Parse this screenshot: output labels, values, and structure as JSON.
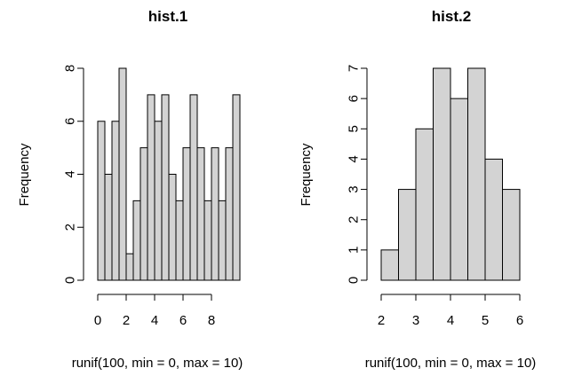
{
  "chart_data": [
    {
      "type": "bar",
      "title": "hist.1",
      "xlabel": "runif(100, min = 0, max = 10)",
      "ylabel": "Frequency",
      "bins": [
        [
          0,
          0.5
        ],
        [
          0.5,
          1
        ],
        [
          1,
          1.5
        ],
        [
          1.5,
          2
        ],
        [
          2,
          2.5
        ],
        [
          2.5,
          3
        ],
        [
          3,
          3.5
        ],
        [
          3.5,
          4
        ],
        [
          4,
          4.5
        ],
        [
          4.5,
          5
        ],
        [
          5,
          5.5
        ],
        [
          5.5,
          6
        ],
        [
          6,
          6.5
        ],
        [
          6.5,
          7
        ],
        [
          7,
          7.5
        ],
        [
          7.5,
          8
        ],
        [
          8,
          8.5
        ],
        [
          8.5,
          9
        ],
        [
          9,
          9.5
        ],
        [
          9.5,
          10
        ]
      ],
      "values": [
        6,
        4,
        6,
        8,
        1,
        3,
        5,
        7,
        6,
        7,
        4,
        3,
        5,
        7,
        5,
        3,
        5,
        3,
        5,
        7
      ],
      "xlim": [
        0,
        10
      ],
      "ylim": [
        0,
        8
      ],
      "xticks": [
        0,
        2,
        4,
        6,
        8
      ],
      "yticks": [
        0,
        2,
        4,
        6,
        8
      ],
      "bar_color": "#d3d3d3",
      "edge_color": "#000000",
      "grid": false
    },
    {
      "type": "bar",
      "title": "hist.2",
      "xlabel": "runif(100, min = 0, max = 10)",
      "ylabel": "Frequency",
      "bins": [
        [
          2,
          2.5
        ],
        [
          2.5,
          3
        ],
        [
          3,
          3.5
        ],
        [
          3.5,
          4
        ],
        [
          4,
          4.5
        ],
        [
          4.5,
          5
        ],
        [
          5,
          5.5
        ],
        [
          5.5,
          6
        ]
      ],
      "values": [
        1,
        3,
        5,
        7,
        6,
        7,
        4,
        3
      ],
      "xlim": [
        2,
        6
      ],
      "ylim": [
        0,
        7
      ],
      "xticks": [
        2,
        3,
        4,
        5,
        6
      ],
      "yticks": [
        0,
        1,
        2,
        3,
        4,
        5,
        6,
        7
      ],
      "bar_color": "#d3d3d3",
      "edge_color": "#000000",
      "grid": false
    }
  ]
}
